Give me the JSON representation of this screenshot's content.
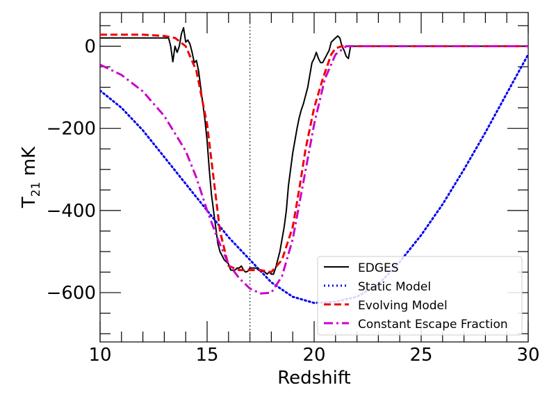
{
  "chart_data": {
    "type": "line",
    "xlabel": "Redshift",
    "ylabel_main": "T",
    "ylabel_sub": "21",
    "ylabel_unit": " mK",
    "xlim": [
      10,
      30
    ],
    "ylim": [
      -720,
      82
    ],
    "x_ticks": [
      10,
      15,
      20,
      25,
      30
    ],
    "x_tick_labels": [
      "10",
      "15",
      "20",
      "25",
      "30"
    ],
    "y_ticks": [
      0,
      -200,
      -400,
      -600
    ],
    "y_tick_labels": [
      "0",
      "−200",
      "−400",
      "−600"
    ],
    "x_minor_step": 1,
    "y_minor_step": 50,
    "vline_x": 17.0,
    "legend_position": "lower-right",
    "series": [
      {
        "name": "EDGES",
        "color": "#000000",
        "style": "solid",
        "x": [
          10.0,
          13.2,
          13.3,
          13.4,
          13.5,
          13.6,
          13.7,
          13.8,
          13.9,
          14.0,
          14.1,
          14.2,
          14.3,
          14.4,
          14.5,
          14.6,
          14.7,
          14.8,
          14.9,
          15.0,
          15.1,
          15.2,
          15.3,
          15.4,
          15.5,
          15.6,
          15.7,
          15.8,
          15.9,
          16.0,
          16.1,
          16.2,
          16.3,
          16.4,
          16.5,
          16.6,
          16.7,
          16.8,
          16.9,
          17.0,
          17.1,
          17.2,
          17.3,
          17.4,
          17.5,
          17.6,
          17.7,
          17.8,
          17.9,
          18.0,
          18.1,
          18.2,
          18.3,
          18.4,
          18.5,
          18.6,
          18.7,
          18.8,
          18.9,
          19.0,
          19.1,
          19.2,
          19.3,
          19.4,
          19.5,
          19.6,
          19.7,
          19.8,
          19.9,
          20.0,
          20.1,
          20.2,
          20.3,
          20.4,
          20.5,
          20.6,
          20.7,
          20.8,
          20.9,
          21.0,
          21.1,
          21.2,
          21.3,
          21.4,
          21.5,
          21.6,
          21.7,
          21.8,
          21.9,
          22.0,
          22.1,
          22.2,
          22.3,
          22.4,
          22.5,
          22.6,
          22.7,
          30.0
        ],
        "y": [
          20,
          20,
          0,
          -38,
          0,
          -15,
          0,
          30,
          45,
          10,
          15,
          5,
          -15,
          -40,
          -35,
          -60,
          -100,
          -140,
          -180,
          -230,
          -300,
          -360,
          -400,
          -440,
          -480,
          -500,
          -510,
          -520,
          -525,
          -530,
          -545,
          -545,
          -545,
          -540,
          -540,
          -535,
          -545,
          -550,
          -548,
          -540,
          -540,
          -540,
          -540,
          -545,
          -545,
          -548,
          -550,
          -555,
          -550,
          -555,
          -555,
          -540,
          -520,
          -500,
          -470,
          -440,
          -400,
          -340,
          -300,
          -260,
          -230,
          -200,
          -175,
          -155,
          -140,
          -120,
          -100,
          -70,
          -40,
          -30,
          -15,
          -30,
          -40,
          -40,
          -30,
          -20,
          -10,
          10,
          15,
          20,
          25,
          20,
          0,
          -10,
          -25,
          -30,
          0,
          0,
          0,
          0,
          0,
          0,
          0,
          0,
          0,
          0,
          0,
          0
        ]
      },
      {
        "name": "Static Model",
        "color": "#0000ee",
        "style": "dotted",
        "x": [
          10,
          11,
          12,
          13,
          14,
          15,
          16,
          17,
          18,
          19,
          20,
          21,
          22,
          23,
          24,
          25,
          26,
          27,
          28,
          29,
          30
        ],
        "y": [
          -108,
          -150,
          -205,
          -270,
          -335,
          -400,
          -465,
          -520,
          -575,
          -610,
          -625,
          -622,
          -610,
          -580,
          -525,
          -460,
          -385,
          -300,
          -210,
          -115,
          -20
        ]
      },
      {
        "name": "Evolving Model",
        "color": "#ee0000",
        "style": "dashed",
        "x": [
          10.0,
          12.0,
          13.0,
          13.5,
          14.0,
          14.5,
          15.0,
          15.3,
          15.6,
          16.0,
          16.5,
          17.0,
          17.5,
          18.0,
          18.5,
          19.0,
          19.3,
          19.6,
          20.0,
          20.4,
          20.8,
          21.0,
          21.3,
          22.0,
          30.0
        ],
        "y": [
          28,
          28,
          25,
          20,
          0,
          -60,
          -190,
          -320,
          -450,
          -535,
          -545,
          -545,
          -545,
          -550,
          -520,
          -440,
          -350,
          -250,
          -150,
          -80,
          -20,
          -5,
          0,
          0,
          0
        ]
      },
      {
        "name": "Constant Escape Fraction",
        "color": "#cc00cc",
        "style": "dashdot",
        "x": [
          10,
          11,
          12,
          13,
          14,
          14.5,
          15,
          15.5,
          16,
          16.5,
          17,
          17.5,
          18,
          18.5,
          19,
          19.5,
          20,
          20.5,
          21,
          21.5,
          22,
          30
        ],
        "y": [
          -45,
          -70,
          -110,
          -170,
          -255,
          -320,
          -400,
          -470,
          -530,
          -565,
          -590,
          -602,
          -600,
          -560,
          -470,
          -330,
          -190,
          -80,
          -20,
          0,
          0,
          0
        ]
      }
    ]
  }
}
